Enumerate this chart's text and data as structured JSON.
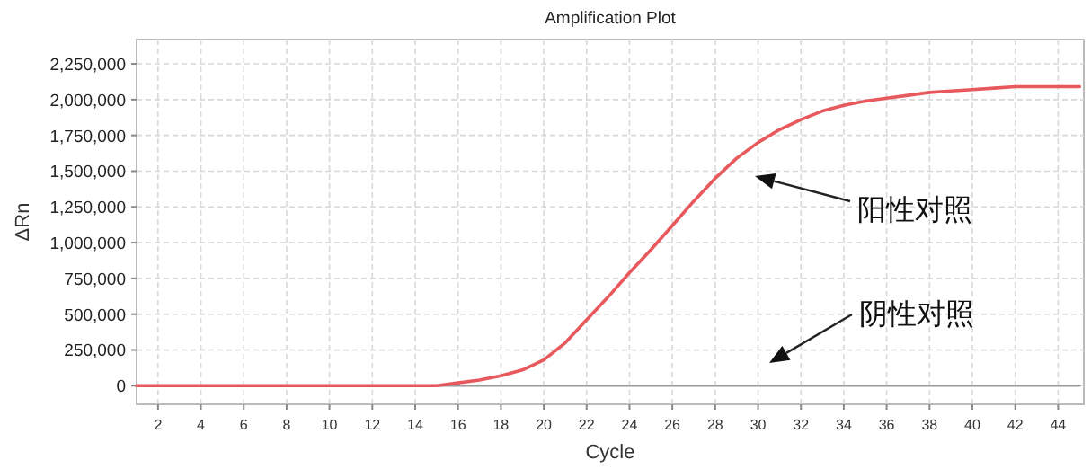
{
  "chart_data": {
    "type": "line",
    "title": "Amplification Plot",
    "xlabel": "Cycle",
    "ylabel": "ΔRn",
    "x": [
      1,
      2,
      3,
      4,
      5,
      6,
      7,
      8,
      9,
      10,
      11,
      12,
      13,
      14,
      15,
      16,
      17,
      18,
      19,
      20,
      21,
      22,
      23,
      24,
      25,
      26,
      27,
      28,
      29,
      30,
      31,
      32,
      33,
      34,
      35,
      36,
      37,
      38,
      39,
      40,
      41,
      42,
      43,
      44,
      45
    ],
    "series": [
      {
        "color": "#9a9a9a",
        "values": [
          0,
          0,
          0,
          0,
          0,
          0,
          0,
          0,
          0,
          0,
          0,
          0,
          0,
          0,
          0,
          0,
          0,
          0,
          0,
          0,
          0,
          0,
          0,
          0,
          0,
          0,
          0,
          0,
          0,
          0,
          0,
          0,
          0,
          0,
          0,
          0,
          0,
          0,
          0,
          0,
          0,
          0,
          0,
          0,
          0
        ]
      },
      {
        "color": "#e8595e",
        "values": [
          0,
          0,
          0,
          0,
          0,
          0,
          0,
          0,
          0,
          0,
          0,
          0,
          0,
          0,
          0,
          20000,
          40000,
          70000,
          110000,
          180000,
          300000,
          460000,
          620000,
          790000,
          950000,
          1120000,
          1290000,
          1450000,
          1590000,
          1700000,
          1790000,
          1860000,
          1920000,
          1960000,
          1990000,
          2010000,
          2030000,
          2050000,
          2060000,
          2070000,
          2080000,
          2090000,
          2090000,
          2090000,
          2090000
        ]
      }
    ],
    "xlim": [
      1,
      45.2
    ],
    "ylim": [
      -130000,
      2420000
    ],
    "xticks": [
      2,
      4,
      6,
      8,
      10,
      12,
      14,
      16,
      18,
      20,
      22,
      24,
      26,
      28,
      30,
      32,
      34,
      36,
      38,
      40,
      42,
      44
    ],
    "yticks": [
      0,
      {
        "value": 250000,
        "label": "250,000"
      },
      {
        "value": 500000,
        "label": "500,000"
      },
      {
        "value": 750000,
        "label": "750,000"
      },
      {
        "value": 1000000,
        "label": "1,000,000"
      },
      {
        "value": 1250000,
        "label": "1,250,000"
      },
      {
        "value": 1500000,
        "label": "1,500,000"
      },
      {
        "value": 1750000,
        "label": "1,750,000"
      },
      {
        "value": 2000000,
        "label": "2,000,000"
      },
      {
        "value": 2250000,
        "label": "2,250,000"
      }
    ],
    "grid": true,
    "line_style": "solid",
    "marker": "none",
    "annotations": [
      "阳性对照",
      "阴性对照"
    ]
  }
}
